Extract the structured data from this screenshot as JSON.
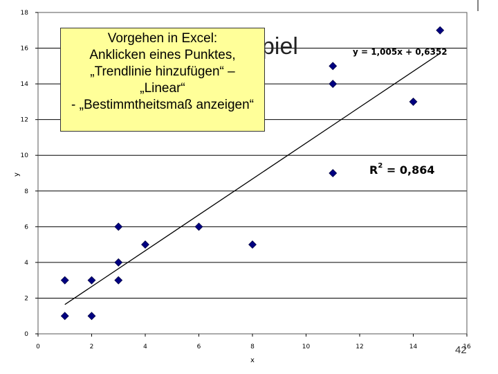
{
  "slide": {
    "background_title_fragment": "piel",
    "page_number": "42"
  },
  "callout": {
    "lines": [
      "Vorgehen in Excel:",
      "Anklicken eines Punktes,",
      "„Trendlinie hinzufügen“ –",
      "„Linear“",
      "- „Bestimmtheitsmaß anzeigen“"
    ],
    "background_color": "#ffff99"
  },
  "chart_data": {
    "type": "scatter",
    "title": "",
    "xlabel": "x",
    "ylabel": "y",
    "xlim": [
      0,
      16
    ],
    "ylim": [
      0,
      18
    ],
    "x_ticks": [
      0,
      2,
      4,
      6,
      8,
      10,
      12,
      14,
      16
    ],
    "y_ticks": [
      0,
      2,
      4,
      6,
      8,
      10,
      12,
      14,
      16,
      18
    ],
    "grid": "horizontal",
    "marker_color": "#000080",
    "points": [
      {
        "x": 1,
        "y": 1
      },
      {
        "x": 1,
        "y": 3
      },
      {
        "x": 2,
        "y": 1
      },
      {
        "x": 2,
        "y": 3
      },
      {
        "x": 3,
        "y": 3
      },
      {
        "x": 3,
        "y": 4
      },
      {
        "x": 3,
        "y": 6
      },
      {
        "x": 4,
        "y": 5
      },
      {
        "x": 6,
        "y": 6
      },
      {
        "x": 8,
        "y": 5
      },
      {
        "x": 11,
        "y": 9
      },
      {
        "x": 11,
        "y": 14
      },
      {
        "x": 11,
        "y": 15
      },
      {
        "x": 14,
        "y": 13
      },
      {
        "x": 15,
        "y": 17
      }
    ],
    "trendline": {
      "type": "linear",
      "slope": 1.005,
      "intercept": 0.6352,
      "x_range": [
        1,
        15
      ],
      "equation_label": "y = 1,005x + 0,6352",
      "r2_label": "= 0,864",
      "r2_prefix": "R",
      "r2_exponent": "2"
    }
  }
}
